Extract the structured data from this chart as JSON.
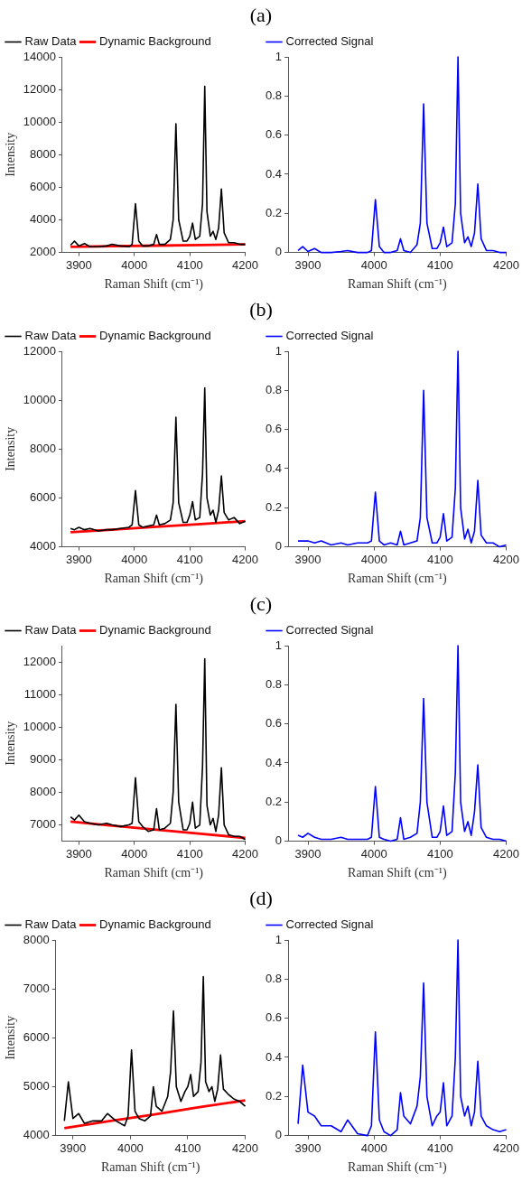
{
  "chart_data": [
    {
      "type": "line",
      "title": "(a)",
      "xlabel": "Raman Shift (cm⁻¹)",
      "ylabel": "Intensity",
      "legend": "top left",
      "grid": false,
      "marker": "none",
      "line_style": "solid",
      "xlim": [
        3870,
        4200
      ],
      "xticks": [
        3900,
        4000,
        4100,
        4200
      ],
      "ylim": [
        2000,
        14000
      ],
      "yticks": [
        2000,
        4000,
        6000,
        8000,
        10000,
        12000,
        14000
      ],
      "x": [
        3885,
        3892,
        3900,
        3910,
        3920,
        3935,
        3950,
        3960,
        3975,
        3990,
        3996,
        4002,
        4008,
        4015,
        4025,
        4035,
        4040,
        4045,
        4055,
        4065,
        4070,
        4075,
        4080,
        4088,
        4095,
        4100,
        4105,
        4110,
        4118,
        4123,
        4127,
        4131,
        4137,
        4142,
        4147,
        4152,
        4157,
        4162,
        4170,
        4180,
        4190,
        4200
      ],
      "series": [
        {
          "name": "Raw Data",
          "color": "#000000",
          "values": [
            2450,
            2700,
            2400,
            2550,
            2350,
            2350,
            2400,
            2500,
            2400,
            2350,
            2500,
            5000,
            2700,
            2400,
            2400,
            2500,
            3100,
            2500,
            2500,
            2800,
            4000,
            9900,
            4000,
            2700,
            2700,
            3000,
            3800,
            2800,
            3000,
            5000,
            12200,
            4500,
            3000,
            3300,
            2800,
            3500,
            5900,
            3200,
            2600,
            2600,
            2500,
            2500
          ]
        },
        {
          "name": "Dynamic Background",
          "color": "#ff0000",
          "x": [
            3885,
            3960,
            4040,
            4120,
            4200
          ],
          "values": [
            2350,
            2390,
            2420,
            2460,
            2500
          ]
        }
      ]
    },
    {
      "type": "line",
      "xlabel": "Raman Shift (cm⁻¹)",
      "legend": "top left",
      "grid": false,
      "marker": "none",
      "line_style": "solid",
      "xlim": [
        3870,
        4200
      ],
      "xticks": [
        3900,
        4000,
        4100,
        4200
      ],
      "ylim": [
        0,
        1
      ],
      "yticks": [
        0,
        0.2,
        0.4,
        0.6,
        0.8,
        1
      ],
      "x": [
        3885,
        3892,
        3900,
        3910,
        3920,
        3935,
        3950,
        3960,
        3975,
        3990,
        3996,
        4002,
        4008,
        4015,
        4025,
        4035,
        4040,
        4045,
        4055,
        4065,
        4070,
        4075,
        4080,
        4088,
        4095,
        4100,
        4105,
        4110,
        4118,
        4123,
        4127,
        4131,
        4137,
        4142,
        4147,
        4152,
        4157,
        4162,
        4170,
        4180,
        4190,
        4200
      ],
      "series": [
        {
          "name": "Corrected Signal",
          "color": "#0000ff",
          "values": [
            0.01,
            0.03,
            0.005,
            0.02,
            0,
            0,
            0.005,
            0.01,
            0,
            0,
            0.01,
            0.27,
            0.03,
            0,
            0,
            0.01,
            0.07,
            0.01,
            0,
            0.04,
            0.15,
            0.76,
            0.15,
            0.02,
            0.02,
            0.05,
            0.13,
            0.03,
            0.05,
            0.25,
            1.0,
            0.2,
            0.05,
            0.08,
            0.03,
            0.1,
            0.35,
            0.07,
            0.01,
            0.01,
            0,
            0
          ]
        }
      ]
    },
    {
      "type": "line",
      "title": "(b)",
      "xlabel": "Raman Shift (cm⁻¹)",
      "ylabel": "Intensity",
      "legend": "top left",
      "grid": false,
      "marker": "none",
      "line_style": "solid",
      "xlim": [
        3870,
        4200
      ],
      "xticks": [
        3900,
        4000,
        4100,
        4200
      ],
      "ylim": [
        4000,
        12000
      ],
      "yticks": [
        4000,
        6000,
        8000,
        10000,
        12000
      ],
      "x": [
        3885,
        3892,
        3900,
        3910,
        3920,
        3935,
        3950,
        3960,
        3975,
        3990,
        3996,
        4002,
        4008,
        4015,
        4025,
        4035,
        4040,
        4045,
        4055,
        4065,
        4070,
        4075,
        4080,
        4088,
        4095,
        4100,
        4105,
        4110,
        4118,
        4123,
        4127,
        4131,
        4137,
        4142,
        4147,
        4152,
        4157,
        4162,
        4170,
        4180,
        4190,
        4200
      ],
      "series": [
        {
          "name": "Raw Data",
          "color": "#000000",
          "values": [
            4750,
            4700,
            4800,
            4700,
            4750,
            4650,
            4700,
            4700,
            4750,
            4800,
            4900,
            6300,
            4900,
            4800,
            4850,
            4900,
            5300,
            4900,
            4950,
            5100,
            5800,
            9300,
            5800,
            5000,
            5000,
            5300,
            5850,
            5100,
            5200,
            7000,
            10500,
            6000,
            5300,
            5500,
            5000,
            5500,
            6900,
            5400,
            5100,
            5200,
            4950,
            5050
          ]
        },
        {
          "name": "Dynamic Background",
          "color": "#ff0000",
          "x": [
            3885,
            3960,
            4040,
            4120,
            4200
          ],
          "values": [
            4600,
            4700,
            4820,
            4930,
            5050
          ]
        }
      ]
    },
    {
      "type": "line",
      "xlabel": "Raman Shift (cm⁻¹)",
      "legend": "top left",
      "grid": false,
      "marker": "none",
      "line_style": "solid",
      "xlim": [
        3870,
        4200
      ],
      "xticks": [
        3900,
        4000,
        4100,
        4200
      ],
      "ylim": [
        0,
        1
      ],
      "yticks": [
        0,
        0.2,
        0.4,
        0.6,
        0.8,
        1
      ],
      "x": [
        3885,
        3892,
        3900,
        3910,
        3920,
        3935,
        3950,
        3960,
        3975,
        3990,
        3996,
        4002,
        4008,
        4015,
        4025,
        4035,
        4040,
        4045,
        4055,
        4065,
        4070,
        4075,
        4080,
        4088,
        4095,
        4100,
        4105,
        4110,
        4118,
        4123,
        4127,
        4131,
        4137,
        4142,
        4147,
        4152,
        4157,
        4162,
        4170,
        4180,
        4190,
        4200
      ],
      "series": [
        {
          "name": "Corrected Signal",
          "color": "#0000ff",
          "values": [
            0.03,
            0.03,
            0.03,
            0.02,
            0.03,
            0.01,
            0.02,
            0.01,
            0.02,
            0.02,
            0.03,
            0.28,
            0.03,
            0.01,
            0.02,
            0.01,
            0.08,
            0.01,
            0.02,
            0.03,
            0.15,
            0.8,
            0.15,
            0.02,
            0.02,
            0.05,
            0.17,
            0.03,
            0.05,
            0.3,
            1.0,
            0.2,
            0.04,
            0.09,
            0.02,
            0.08,
            0.34,
            0.06,
            0.02,
            0.02,
            0,
            0.01
          ]
        }
      ]
    },
    {
      "type": "line",
      "title": "(c)",
      "xlabel": "Raman Shift (cm⁻¹)",
      "ylabel": "Intensity",
      "legend": "top left",
      "grid": false,
      "marker": "none",
      "line_style": "solid",
      "xlim": [
        3870,
        4200
      ],
      "xticks": [
        3900,
        4000,
        4100,
        4200
      ],
      "ylim": [
        6500,
        12500
      ],
      "yticks": [
        7000,
        8000,
        9000,
        10000,
        11000,
        12000
      ],
      "x": [
        3885,
        3892,
        3900,
        3910,
        3920,
        3935,
        3950,
        3960,
        3975,
        3990,
        3996,
        4002,
        4008,
        4015,
        4025,
        4035,
        4040,
        4045,
        4055,
        4065,
        4070,
        4075,
        4080,
        4088,
        4095,
        4100,
        4105,
        4110,
        4118,
        4123,
        4127,
        4131,
        4137,
        4142,
        4147,
        4152,
        4157,
        4162,
        4170,
        4180,
        4190,
        4200
      ],
      "series": [
        {
          "name": "Raw Data",
          "color": "#000000",
          "values": [
            7250,
            7150,
            7300,
            7100,
            7050,
            7000,
            7050,
            7000,
            6950,
            7000,
            7050,
            8450,
            7100,
            6950,
            6800,
            6850,
            7500,
            6850,
            6900,
            7050,
            8000,
            10700,
            7700,
            6850,
            6850,
            7050,
            7700,
            6900,
            7000,
            8800,
            12100,
            7600,
            7000,
            7200,
            6800,
            7300,
            8750,
            7000,
            6700,
            6650,
            6650,
            6550
          ]
        },
        {
          "name": "Dynamic Background",
          "color": "#ff0000",
          "x": [
            3885,
            3960,
            4040,
            4120,
            4200
          ],
          "values": [
            7100,
            6980,
            6850,
            6730,
            6600
          ]
        }
      ]
    },
    {
      "type": "line",
      "xlabel": "Raman Shift (cm⁻¹)",
      "legend": "top left",
      "grid": false,
      "marker": "none",
      "line_style": "solid",
      "xlim": [
        3870,
        4200
      ],
      "xticks": [
        3900,
        4000,
        4100,
        4200
      ],
      "ylim": [
        0,
        1
      ],
      "yticks": [
        0,
        0.2,
        0.4,
        0.6,
        0.8,
        1
      ],
      "x": [
        3885,
        3892,
        3900,
        3910,
        3920,
        3935,
        3950,
        3960,
        3975,
        3990,
        3996,
        4002,
        4008,
        4015,
        4025,
        4035,
        4040,
        4045,
        4055,
        4065,
        4070,
        4075,
        4080,
        4088,
        4095,
        4100,
        4105,
        4110,
        4118,
        4123,
        4127,
        4131,
        4137,
        4142,
        4147,
        4152,
        4157,
        4162,
        4170,
        4180,
        4190,
        4200
      ],
      "series": [
        {
          "name": "Corrected Signal",
          "color": "#0000ff",
          "values": [
            0.03,
            0.02,
            0.04,
            0.02,
            0.01,
            0.01,
            0.02,
            0.01,
            0.01,
            0.01,
            0.02,
            0.28,
            0.02,
            0.01,
            0,
            0.01,
            0.12,
            0.01,
            0.02,
            0.04,
            0.2,
            0.73,
            0.2,
            0.02,
            0.02,
            0.05,
            0.18,
            0.03,
            0.05,
            0.35,
            1.0,
            0.2,
            0.05,
            0.1,
            0.03,
            0.15,
            0.39,
            0.07,
            0.02,
            0.01,
            0.01,
            0
          ]
        }
      ]
    },
    {
      "type": "line",
      "title": "(d)",
      "xlabel": "Raman Shift (cm⁻¹)",
      "ylabel": "Intensity",
      "legend": "top left",
      "grid": false,
      "marker": "none",
      "line_style": "solid",
      "xlim": [
        3870,
        4200
      ],
      "xticks": [
        3900,
        4000,
        4100,
        4200
      ],
      "ylim": [
        4000,
        8000
      ],
      "yticks": [
        4000,
        5000,
        6000,
        7000,
        8000
      ],
      "x": [
        3885,
        3892,
        3900,
        3910,
        3920,
        3935,
        3950,
        3960,
        3975,
        3990,
        3996,
        4002,
        4008,
        4015,
        4025,
        4035,
        4040,
        4045,
        4055,
        4065,
        4070,
        4075,
        4080,
        4088,
        4095,
        4100,
        4105,
        4110,
        4118,
        4123,
        4127,
        4131,
        4137,
        4142,
        4147,
        4152,
        4157,
        4162,
        4170,
        4180,
        4190,
        4200
      ],
      "series": [
        {
          "name": "Raw Data",
          "color": "#000000",
          "values": [
            4300,
            5100,
            4350,
            4450,
            4250,
            4300,
            4300,
            4450,
            4300,
            4200,
            4400,
            5750,
            4500,
            4350,
            4300,
            4400,
            5000,
            4600,
            4500,
            4800,
            5300,
            6550,
            5000,
            4700,
            4900,
            5000,
            5250,
            4800,
            4900,
            5500,
            7250,
            5100,
            4900,
            5000,
            4700,
            4950,
            5650,
            4950,
            4850,
            4750,
            4700,
            4600
          ]
        },
        {
          "name": "Dynamic Background",
          "color": "#ff0000",
          "x": [
            3885,
            3960,
            4040,
            4120,
            4200
          ],
          "values": [
            4150,
            4290,
            4430,
            4580,
            4720
          ]
        }
      ]
    },
    {
      "type": "line",
      "xlabel": "Raman Shift (cm⁻¹)",
      "legend": "top left",
      "grid": false,
      "marker": "none",
      "line_style": "solid",
      "xlim": [
        3870,
        4200
      ],
      "xticks": [
        3900,
        4000,
        4100,
        4200
      ],
      "ylim": [
        0,
        1
      ],
      "yticks": [
        0,
        0.2,
        0.4,
        0.6,
        0.8,
        1
      ],
      "x": [
        3885,
        3892,
        3900,
        3910,
        3920,
        3935,
        3950,
        3960,
        3975,
        3990,
        3996,
        4002,
        4008,
        4015,
        4025,
        4035,
        4040,
        4045,
        4055,
        4065,
        4070,
        4075,
        4080,
        4088,
        4095,
        4100,
        4105,
        4110,
        4118,
        4123,
        4127,
        4131,
        4137,
        4142,
        4147,
        4152,
        4157,
        4162,
        4170,
        4180,
        4190,
        4200
      ],
      "series": [
        {
          "name": "Corrected Signal",
          "color": "#0000ff",
          "values": [
            0.06,
            0.36,
            0.12,
            0.1,
            0.05,
            0.05,
            0.02,
            0.08,
            0.01,
            0,
            0.05,
            0.53,
            0.08,
            0.02,
            0,
            0.03,
            0.22,
            0.1,
            0.06,
            0.15,
            0.3,
            0.78,
            0.2,
            0.05,
            0.1,
            0.12,
            0.27,
            0.05,
            0.1,
            0.4,
            1.0,
            0.2,
            0.1,
            0.15,
            0.05,
            0.12,
            0.38,
            0.1,
            0.05,
            0.03,
            0.02,
            0.03
          ]
        }
      ]
    }
  ]
}
